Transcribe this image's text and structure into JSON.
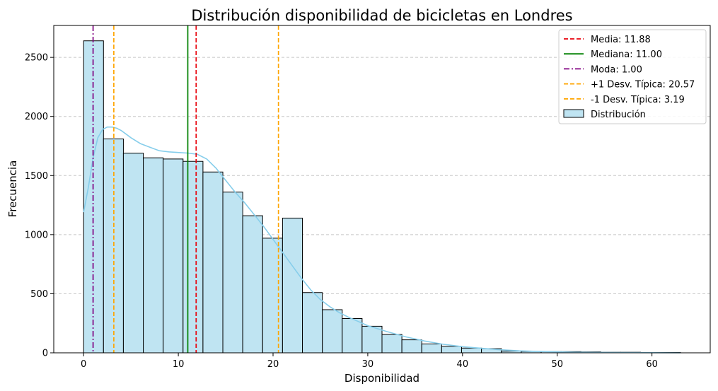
{
  "chart_data": {
    "type": "bar",
    "title": "Distribución disponibilidad de bicicletas en Londres",
    "xlabel": "Disponibilidad",
    "ylabel": "Frecuencia",
    "xlim": [
      -3.15,
      66.15
    ],
    "ylim": [
      0,
      2770
    ],
    "xticks": [
      0,
      10,
      20,
      30,
      40,
      50,
      60
    ],
    "yticks": [
      0,
      500,
      1000,
      1500,
      2000,
      2500
    ],
    "grid": "y-dashed",
    "legend_position": "top-right",
    "bin_edges": [
      0,
      2.1,
      4.2,
      6.3,
      8.4,
      10.5,
      12.6,
      14.7,
      16.8,
      18.9,
      21.0,
      23.1,
      25.2,
      27.3,
      29.4,
      31.5,
      33.6,
      35.7,
      37.8,
      39.9,
      42.0,
      44.1,
      46.2,
      48.3,
      50.4,
      52.5,
      54.6,
      56.7,
      58.8,
      60.9,
      63.0
    ],
    "bin_counts": [
      2640,
      1810,
      1690,
      1650,
      1640,
      1620,
      1530,
      1360,
      1160,
      970,
      1140,
      510,
      365,
      290,
      225,
      155,
      110,
      75,
      55,
      40,
      35,
      15,
      12,
      10,
      10,
      8,
      5,
      5,
      3,
      3
    ],
    "kde": {
      "x": [
        0,
        0.5,
        1,
        1.5,
        2,
        2.5,
        3,
        3.5,
        4,
        5,
        6,
        7,
        8,
        9,
        10,
        11,
        12,
        13,
        14,
        15,
        16,
        17,
        18,
        19,
        20,
        21,
        22,
        23,
        24,
        25,
        26,
        27,
        28,
        29,
        30,
        32,
        34,
        36,
        38,
        40,
        42,
        44,
        46,
        48,
        50,
        52,
        55,
        58,
        60,
        63
      ],
      "y": [
        1190,
        1400,
        1650,
        1820,
        1890,
        1910,
        1910,
        1900,
        1880,
        1820,
        1770,
        1740,
        1710,
        1700,
        1695,
        1690,
        1680,
        1640,
        1560,
        1460,
        1360,
        1270,
        1170,
        1070,
        960,
        850,
        740,
        630,
        530,
        450,
        390,
        340,
        300,
        265,
        230,
        180,
        135,
        100,
        72,
        52,
        38,
        26,
        17,
        12,
        8,
        5,
        3,
        2,
        1,
        0
      ]
    },
    "reference_lines": [
      {
        "label": "Media: 11.88",
        "x": 11.88,
        "color": "#e8000b",
        "style": "dashed"
      },
      {
        "label": "Mediana: 11.00",
        "x": 11.0,
        "color": "#008000",
        "style": "solid"
      },
      {
        "label": "Moda: 1.00",
        "x": 1.0,
        "color": "#800080",
        "style": "dashdot"
      },
      {
        "label": "+1 Desv. Típica: 20.57",
        "x": 20.57,
        "color": "#ffa500",
        "style": "dashed"
      },
      {
        "label": "-1 Desv. Típica: 3.19",
        "x": 3.19,
        "color": "#ffa500",
        "style": "dashed"
      }
    ],
    "histogram_series": {
      "label": "Distribución",
      "fill": "#bfe4f2",
      "edge": "#000000",
      "kde_color": "#87ceeb"
    }
  }
}
